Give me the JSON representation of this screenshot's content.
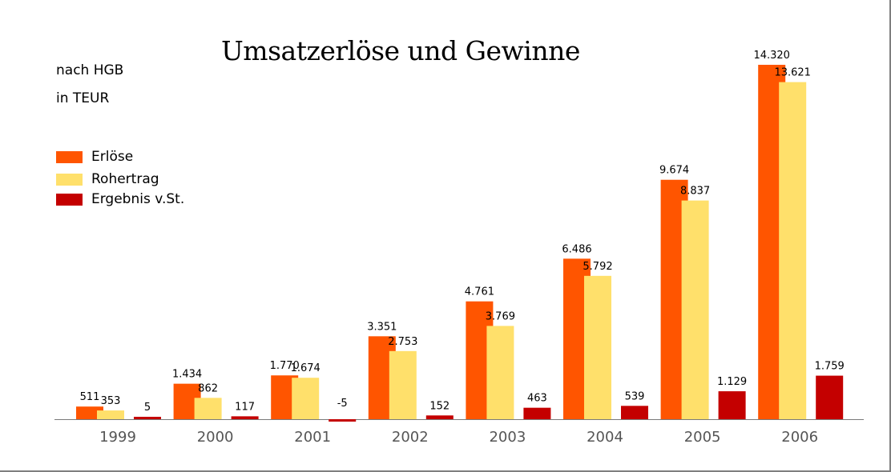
{
  "chart_data": {
    "type": "bar",
    "title": "Umsatzerlöse und Gewinne",
    "subtitle_lines": [
      "nach HGB",
      "in TEUR"
    ],
    "categories": [
      "1999",
      "2000",
      "2001",
      "2002",
      "2003",
      "2004",
      "2005",
      "2006"
    ],
    "series": [
      {
        "name": "Erlöse",
        "color": "#ff5500",
        "values": [
          511,
          1434,
          1770,
          3351,
          4761,
          6486,
          9674,
          14320
        ],
        "labels": [
          "511",
          "1.434",
          "1.770",
          "3.351",
          "4.761",
          "6.486",
          "9.674",
          "14.320"
        ]
      },
      {
        "name": "Rohertrag",
        "color": "#ffe06b",
        "values": [
          353,
          862,
          1674,
          2753,
          3769,
          5792,
          8837,
          13621
        ],
        "labels": [
          "353",
          "862",
          "1.674",
          "2.753",
          "3.769",
          "5.792",
          "8.837",
          "13.621"
        ]
      },
      {
        "name": "Ergebnis v.St.",
        "color": "#c40000",
        "values": [
          5,
          117,
          -5,
          152,
          463,
          539,
          1129,
          1759
        ],
        "labels": [
          "5",
          "117",
          "-5",
          "152",
          "463",
          "539",
          "1.129",
          "1.759"
        ]
      }
    ],
    "legend_position": "left",
    "grid": false,
    "ylim": [
      -5,
      14320
    ]
  }
}
